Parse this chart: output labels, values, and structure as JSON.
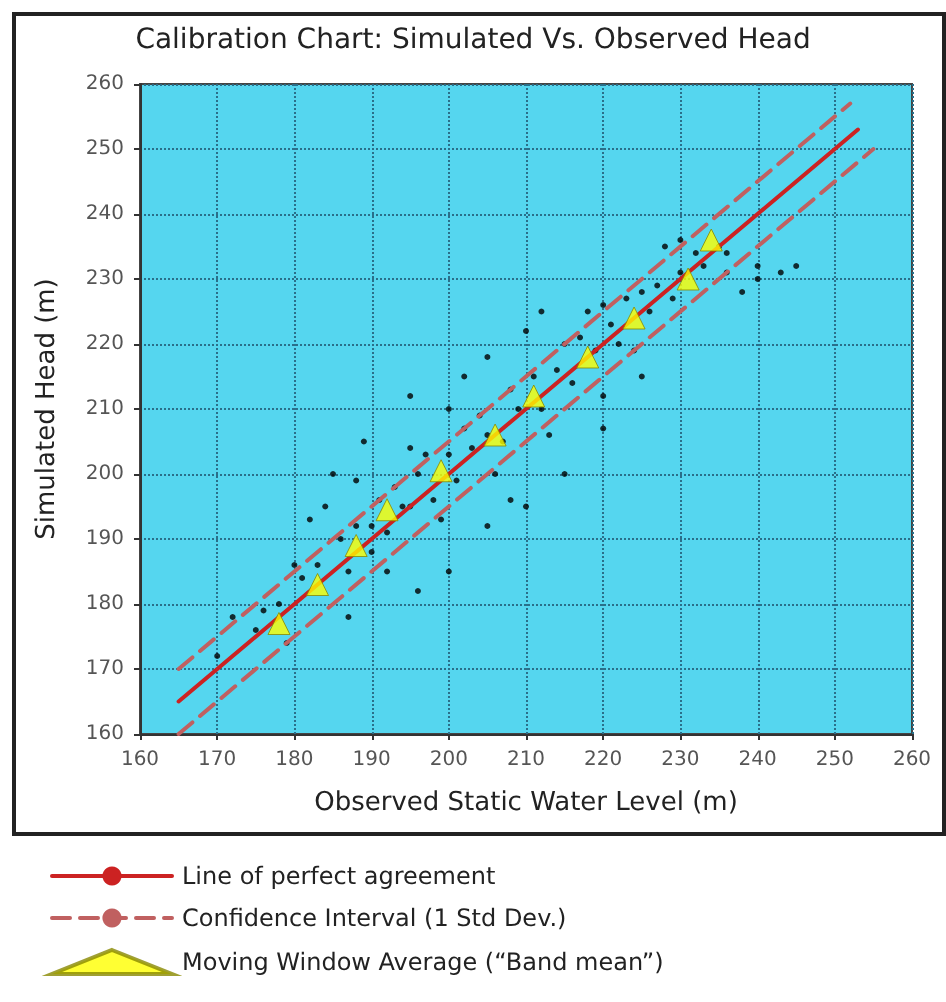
{
  "chart_data": {
    "type": "scatter",
    "title": "Calibration Chart: Simulated Vs. Observed Head",
    "xlabel": "Observed Static Water Level (m)",
    "ylabel": "Simulated Head (m)",
    "xlim": [
      160,
      260
    ],
    "ylim": [
      160,
      260
    ],
    "xticks": [
      160,
      170,
      180,
      190,
      200,
      210,
      220,
      230,
      240,
      250,
      260
    ],
    "yticks": [
      160,
      170,
      180,
      190,
      200,
      210,
      220,
      230,
      240,
      250,
      260
    ],
    "grid": true,
    "legend": "bottom",
    "series": [
      {
        "color": "#000000",
        "marker": "circle",
        "x": [
          170,
          172,
          175,
          176,
          178,
          179,
          180,
          181,
          182,
          183,
          184,
          185,
          186,
          187,
          187,
          188,
          188,
          189,
          190,
          190,
          191,
          192,
          192,
          193,
          194,
          195,
          195,
          195,
          196,
          196,
          197,
          198,
          199,
          200,
          200,
          200,
          201,
          202,
          202,
          203,
          204,
          205,
          205,
          205,
          206,
          207,
          208,
          208,
          209,
          210,
          210,
          211,
          212,
          212,
          213,
          214,
          215,
          215,
          216,
          217,
          218,
          219,
          220,
          220,
          220,
          221,
          222,
          223,
          224,
          225,
          225,
          226,
          227,
          228,
          229,
          230,
          230,
          232,
          233,
          235,
          236,
          236,
          238,
          240,
          240,
          243,
          245
        ],
        "values": [
          172,
          178,
          176,
          179,
          180,
          174,
          186,
          184,
          193,
          186,
          195,
          200,
          190,
          185,
          178,
          199,
          192,
          205,
          188,
          192,
          196,
          185,
          191,
          198,
          195,
          204,
          212,
          195,
          200,
          182,
          203,
          196,
          193,
          203,
          210,
          185,
          199,
          207,
          215,
          204,
          209,
          206,
          218,
          192,
          200,
          205,
          213,
          196,
          210,
          222,
          195,
          215,
          210,
          225,
          206,
          216,
          220,
          200,
          214,
          221,
          225,
          219,
          226,
          212,
          207,
          223,
          220,
          227,
          219,
          215,
          228,
          225,
          229,
          235,
          227,
          231,
          236,
          234,
          232,
          235,
          234,
          231,
          228,
          230,
          232,
          231,
          232
        ]
      },
      {
        "type": "line",
        "name": "Line of perfect agreement",
        "color": "#cc2222",
        "line_style": "solid",
        "marker": "none",
        "x": [
          165,
          253
        ],
        "values": [
          165,
          253
        ]
      },
      {
        "type": "line",
        "name": "Confidence Interval (1 Std Dev.)",
        "color": "#c06060",
        "line_style": "dashed",
        "marker": "none",
        "x": [
          165,
          252
        ],
        "values": [
          170,
          257
        ]
      },
      {
        "type": "line",
        "color": "#c06060",
        "line_style": "dashed",
        "marker": "none",
        "x": [
          165,
          255
        ],
        "values": [
          160,
          250
        ]
      },
      {
        "name": "Moving Window Average (“Band mean”)",
        "color": "#ffff00",
        "marker": "triangle",
        "x": [
          178,
          183,
          188,
          192,
          199,
          206,
          211,
          218,
          224,
          231,
          234
        ],
        "values": [
          177,
          183,
          189,
          194.5,
          200.5,
          206,
          212,
          218,
          224,
          230,
          236
        ]
      }
    ]
  }
}
